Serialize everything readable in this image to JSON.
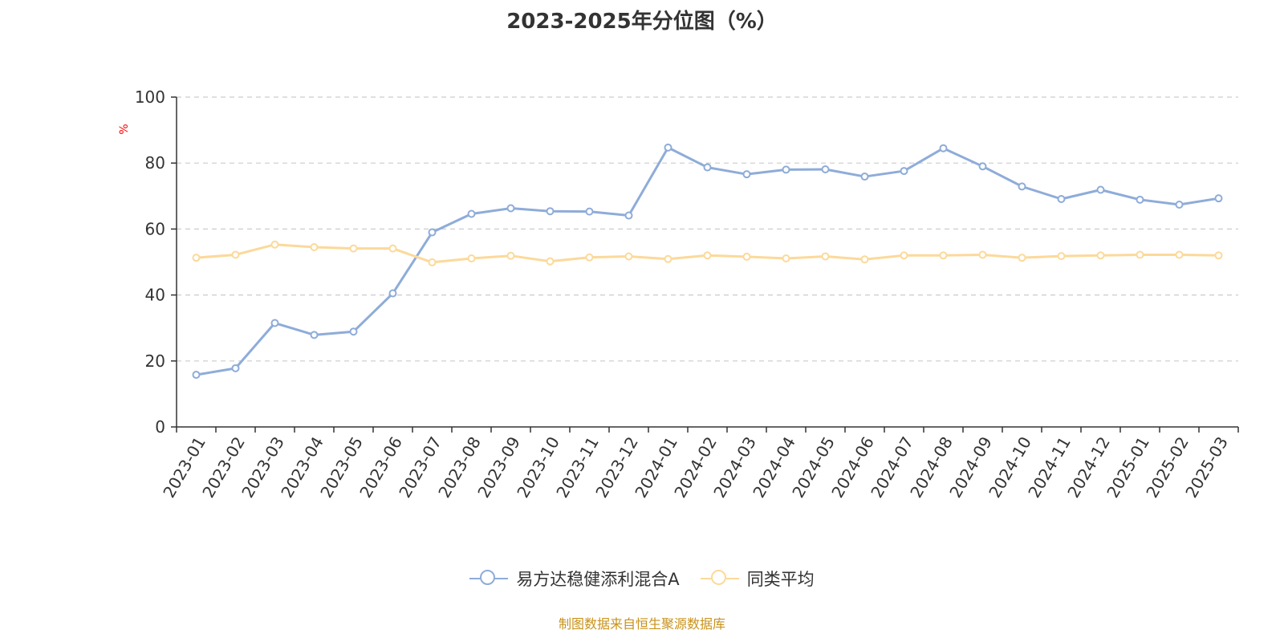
{
  "chart_data": {
    "type": "line",
    "title": "2023-2025年分位图（%）",
    "ylabel": "%",
    "xlabel": "",
    "ylim": [
      0,
      100
    ],
    "yticks": [
      "0",
      "20",
      "40",
      "60",
      "80",
      "100"
    ],
    "grid": true,
    "legend_position": "bottom",
    "categories": [
      "2023-01",
      "2023-02",
      "2023-03",
      "2023-04",
      "2023-05",
      "2023-06",
      "2023-07",
      "2023-08",
      "2023-09",
      "2023-10",
      "2023-11",
      "2023-12",
      "2024-01",
      "2024-02",
      "2024-03",
      "2024-04",
      "2024-05",
      "2024-06",
      "2024-07",
      "2024-08",
      "2024-09",
      "2024-10",
      "2024-11",
      "2024-12",
      "2025-01",
      "2025-02",
      "2025-03"
    ],
    "series": [
      {
        "name": "易方达稳健添利混合A",
        "color": "#8eacd9",
        "values": [
          15.8,
          17.8,
          31.5,
          27.9,
          28.9,
          40.5,
          59.0,
          64.6,
          66.3,
          65.4,
          65.3,
          64.1,
          84.7,
          78.7,
          76.6,
          78.0,
          78.1,
          75.9,
          77.6,
          84.5,
          79.0,
          72.9,
          69.1,
          71.9,
          68.9,
          67.4,
          69.3
        ]
      },
      {
        "name": "同类平均",
        "color": "#fcd99a",
        "values": [
          51.3,
          52.2,
          55.3,
          54.5,
          54.1,
          54.1,
          49.9,
          51.1,
          51.9,
          50.2,
          51.4,
          51.7,
          50.9,
          52.0,
          51.6,
          51.1,
          51.7,
          50.8,
          52.0,
          52.0,
          52.2,
          51.3,
          51.8,
          52.0,
          52.2,
          52.2,
          52.0
        ]
      }
    ]
  },
  "source_note": "制图数据来自恒生聚源数据库"
}
